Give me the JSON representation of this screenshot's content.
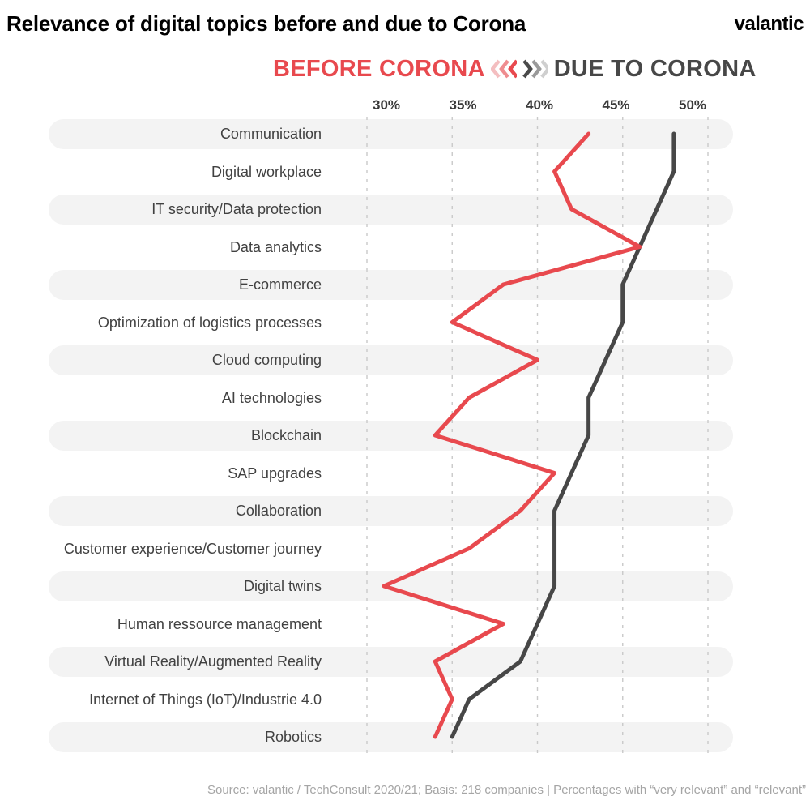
{
  "header": {
    "title": "Relevance of digital topics before and due to Corona",
    "logo": "valantic"
  },
  "legend": {
    "before_label": "BEFORE CORONA",
    "due_label": "DUE TO CORONA",
    "before_color": "#e8494e",
    "due_color": "#474747",
    "before_chevron_colors": [
      "#f4bec0",
      "#ef8d90",
      "#e8494e"
    ],
    "due_chevron_colors": [
      "#4a4a4a",
      "#9a9a9a",
      "#cfcfcf"
    ]
  },
  "chart_data": {
    "type": "line",
    "orientation": "vertical-category-list",
    "title": "Relevance of digital topics before and due to Corona",
    "unit": "%",
    "categories": [
      "Communication",
      "Digital workplace",
      "IT security/Data protection",
      "Data analytics",
      "E-commerce",
      "Optimization of logistics processes",
      "Cloud computing",
      "AI technologies",
      "Blockchain",
      "SAP upgrades",
      "Collaboration",
      "Customer experience/Customer journey",
      "Digital twins",
      "Human ressource management",
      "Virtual Reality/Augmented Reality",
      "Internet of Things (IoT)/Industrie 4.0",
      "Robotics"
    ],
    "series": [
      {
        "name": "Before Corona",
        "color": "#e8494e",
        "values": [
          43,
          41,
          42,
          46,
          38,
          35,
          40,
          36,
          34,
          41,
          39,
          36,
          31,
          38,
          34,
          35,
          34
        ]
      },
      {
        "name": "Due to Corona",
        "color": "#474747",
        "values": [
          48,
          48,
          47,
          46,
          45,
          45,
          44,
          43,
          43,
          42,
          41,
          41,
          41,
          40,
          39,
          36,
          35
        ]
      }
    ],
    "x_axis": {
      "tick_labels": [
        "30%",
        "35%",
        "40%",
        "45%",
        "50%"
      ],
      "tick_values": [
        30,
        35,
        40,
        45,
        50
      ],
      "range": [
        30,
        50
      ],
      "gridlines": "dashed",
      "gridline_color": "#c9c9c9"
    },
    "row_band_color": "#f3f3f3",
    "legend_position": "top-center"
  },
  "footer": {
    "source": "Source: valantic / TechConsult 2020/21; Basis: 218 companies | Percentages with “very relevant” and “relevant”"
  }
}
